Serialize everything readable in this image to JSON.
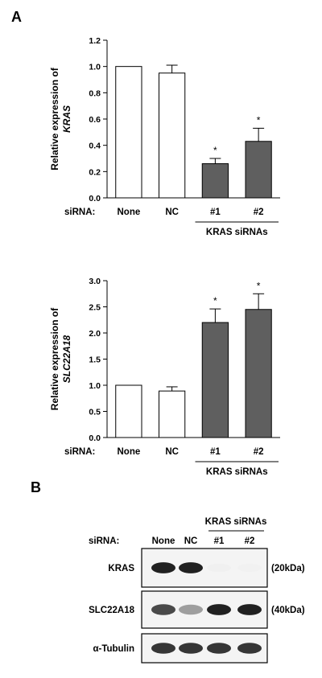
{
  "panels": {
    "a_label": "A",
    "b_label": "B"
  },
  "chart_data": [
    {
      "type": "bar",
      "categories": [
        "None",
        "NC",
        "#1",
        "#2"
      ],
      "values": [
        1.0,
        0.95,
        0.26,
        0.43
      ],
      "errors": [
        0,
        0.06,
        0.04,
        0.1
      ],
      "significant": [
        false,
        false,
        true,
        true
      ],
      "significance_mark": "*",
      "bar_colors": [
        "#ffffff",
        "#ffffff",
        "#5f5f5f",
        "#5f5f5f"
      ],
      "ylabel_line1": "Relative expression of",
      "ylabel_line2": "KRAS",
      "ylim": [
        0,
        1.2
      ],
      "yticks": [
        "0.0",
        "0.2",
        "0.4",
        "0.6",
        "0.8",
        "1.0",
        "1.2"
      ],
      "row_label": "siRNA:",
      "group_label": "KRAS siRNAs"
    },
    {
      "type": "bar",
      "categories": [
        "None",
        "NC",
        "#1",
        "#2"
      ],
      "values": [
        1.0,
        0.89,
        2.2,
        2.45
      ],
      "errors": [
        0,
        0.08,
        0.26,
        0.3
      ],
      "significant": [
        false,
        false,
        true,
        true
      ],
      "significance_mark": "*",
      "bar_colors": [
        "#ffffff",
        "#ffffff",
        "#5f5f5f",
        "#5f5f5f"
      ],
      "ylabel_line1": "Relative expression of",
      "ylabel_line2": "SLC22A18",
      "ylim": [
        0,
        3.0
      ],
      "yticks": [
        "0.0",
        "0.5",
        "1.0",
        "1.5",
        "2.0",
        "2.5",
        "3.0"
      ],
      "row_label": "siRNA:",
      "group_label": "KRAS siRNAs"
    }
  ],
  "blot": {
    "group_label": "KRAS siRNAs",
    "row_label": "siRNA:",
    "lanes": [
      "None",
      "NC",
      "#1",
      "#2"
    ],
    "rows": [
      {
        "name": "KRAS",
        "size": "(20kDa)",
        "intensity": [
          0.95,
          0.95,
          0.06,
          0.04
        ]
      },
      {
        "name": "SLC22A18",
        "size": "(40kDa)",
        "intensity": [
          0.85,
          0.6,
          0.95,
          0.95
        ]
      },
      {
        "name": "α-Tubulin",
        "size": "",
        "intensity": [
          0.9,
          0.9,
          0.9,
          0.9
        ]
      }
    ]
  }
}
